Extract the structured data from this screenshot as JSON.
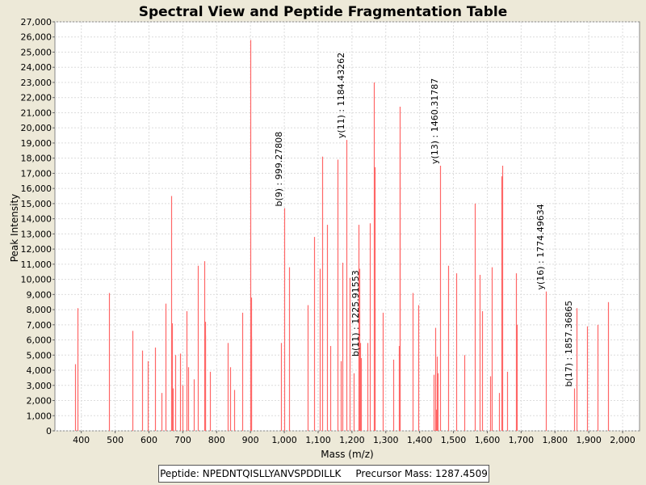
{
  "chart_data": {
    "type": "bar",
    "title": "Spectral View and Peptide Fragmentation Table",
    "xlabel": "Mass (m/z)",
    "ylabel": "Peak Intensity",
    "xlim": [
      322,
      2050
    ],
    "ylim": [
      0,
      27000
    ],
    "xticks": [
      400,
      500,
      600,
      700,
      800,
      900,
      1000,
      1100,
      1200,
      1300,
      1400,
      1500,
      1600,
      1700,
      1800,
      1900,
      2000
    ],
    "xtick_labels": [
      "400",
      "500",
      "600",
      "700",
      "800",
      "900",
      "1,000",
      "1,100",
      "1,200",
      "1,300",
      "1,400",
      "1,500",
      "1,600",
      "1,700",
      "1,800",
      "1,900",
      "2,000"
    ],
    "yticks": [
      0,
      1000,
      2000,
      3000,
      4000,
      5000,
      6000,
      7000,
      8000,
      9000,
      10000,
      11000,
      12000,
      13000,
      14000,
      15000,
      16000,
      17000,
      18000,
      19000,
      20000,
      21000,
      22000,
      23000,
      24000,
      25000,
      26000,
      27000
    ],
    "ytick_labels": [
      "0",
      "1,000",
      "2,000",
      "3,000",
      "4,000",
      "5,000",
      "6,000",
      "7,000",
      "8,000",
      "9,000",
      "10,000",
      "11,000",
      "12,000",
      "13,000",
      "14,000",
      "15,000",
      "16,000",
      "17,000",
      "18,000",
      "19,000",
      "20,000",
      "21,000",
      "22,000",
      "23,000",
      "24,000",
      "25,000",
      "26,000",
      "27,000"
    ],
    "grid": true,
    "series": [
      {
        "name": "peaks",
        "color": "#ff6666",
        "mz": [
          381,
          390,
          483,
          552,
          580,
          596,
          618,
          638,
          650,
          666,
          668,
          670,
          678,
          692,
          698,
          712,
          716,
          732,
          745,
          763,
          765,
          767,
          780,
          833,
          840,
          853,
          875,
          899,
          901,
          903,
          991,
          999,
          1015,
          1069,
          1087,
          1105,
          1113,
          1127,
          1136,
          1157,
          1167,
          1172,
          1184,
          1192,
          1204,
          1220,
          1222,
          1224,
          1226,
          1245,
          1252,
          1264,
          1266,
          1268,
          1291,
          1321,
          1338,
          1340,
          1342,
          1380,
          1396,
          1442,
          1446,
          1448,
          1452,
          1454,
          1460,
          1484,
          1508,
          1533,
          1564,
          1577,
          1584,
          1609,
          1613,
          1635,
          1642,
          1644,
          1659,
          1685,
          1688,
          1774,
          1857,
          1863,
          1896,
          1925,
          1958
        ],
        "intensity": [
          4400,
          8100,
          9100,
          6600,
          5300,
          4600,
          5500,
          2500,
          8400,
          15500,
          7100,
          2800,
          5000,
          5100,
          3000,
          7900,
          4200,
          3400,
          10900,
          11200,
          7200,
          6300,
          3900,
          5800,
          4200,
          2700,
          7800,
          25800,
          8800,
          6200,
          5800,
          14700,
          10800,
          8300,
          12800,
          10700,
          18100,
          13600,
          5600,
          17900,
          4600,
          11100,
          19200,
          10100,
          3800,
          13600,
          10700,
          5800,
          4800,
          5800,
          13700,
          23000,
          17400,
          8100,
          7800,
          4700,
          5600,
          21400,
          19000,
          9100,
          8300,
          3700,
          6800,
          1400,
          4900,
          3800,
          17500,
          10900,
          10400,
          5000,
          15000,
          10300,
          7900,
          3600,
          10800,
          2500,
          16800,
          17500,
          3900,
          10400,
          7000,
          9200,
          2800,
          8100,
          6900,
          7000,
          8500
        ]
      }
    ],
    "annotations": [
      {
        "mz": 999,
        "intensity": 14700,
        "label": "b(9) : 999.27808"
      },
      {
        "mz": 1184,
        "intensity": 19200,
        "label": "y(11) : 1184.43262"
      },
      {
        "mz": 1460,
        "intensity": 17500,
        "label": "y(13) : 1460.31787"
      },
      {
        "mz": 1774,
        "intensity": 9200,
        "label": "y(16) : 1774.49634"
      },
      {
        "mz": 1226,
        "intensity": 4800,
        "label": "b(11) : 1225.91553"
      },
      {
        "mz": 1857,
        "intensity": 2800,
        "label": "b(17) : 1857.36865"
      }
    ]
  },
  "legend": {
    "peptide": "Peptide: NPEDNTQISLLYANVSPDDILLK",
    "precursor": "Precursor Mass: 1287.4509"
  }
}
